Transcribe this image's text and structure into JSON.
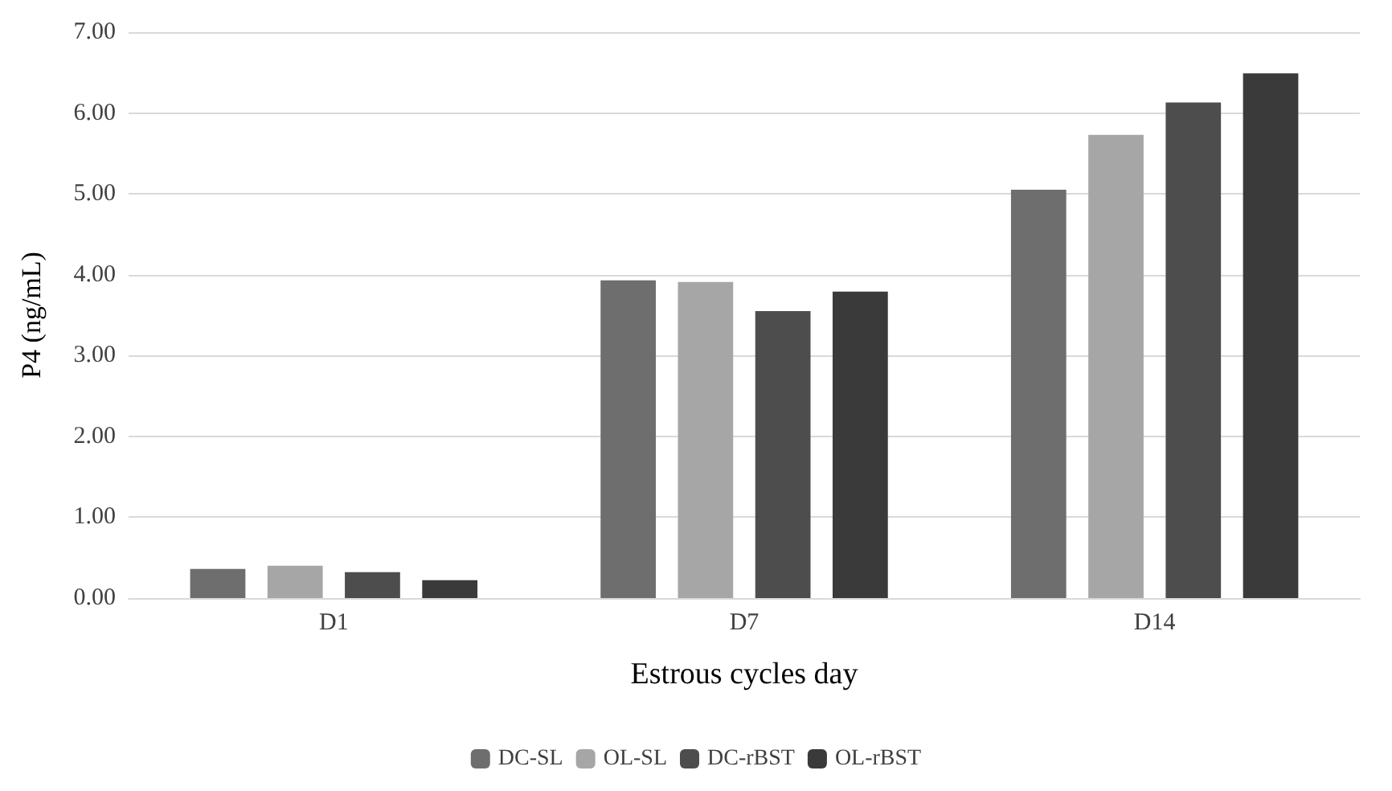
{
  "chart_data": {
    "type": "bar",
    "xlabel": "Estrous cycles day",
    "ylabel": "P4 (ng/mL)",
    "categories": [
      "D1",
      "D7",
      "D14"
    ],
    "series": [
      {
        "name": "DC-SL",
        "color": "#6e6e6e",
        "values": [
          0.36,
          3.93,
          5.05
        ]
      },
      {
        "name": "OL-SL",
        "color": "#a6a6a6",
        "values": [
          0.4,
          3.91,
          5.73
        ]
      },
      {
        "name": "DC-rBST",
        "color": "#4d4d4d",
        "values": [
          0.32,
          3.55,
          6.13
        ]
      },
      {
        "name": "OL-rBST",
        "color": "#3a3a3a",
        "values": [
          0.22,
          3.79,
          6.49
        ]
      }
    ],
    "ylim": [
      0,
      7
    ],
    "yticks": [
      {
        "value": 0,
        "label": "0.00"
      },
      {
        "value": 1,
        "label": "1.00"
      },
      {
        "value": 2,
        "label": "2.00"
      },
      {
        "value": 3,
        "label": "3.00"
      },
      {
        "value": 4,
        "label": "4.00"
      },
      {
        "value": 5,
        "label": "5.00"
      },
      {
        "value": 6,
        "label": "6.00"
      },
      {
        "value": 7,
        "label": "7.00"
      }
    ],
    "grid": "y",
    "legend": "bottom"
  }
}
